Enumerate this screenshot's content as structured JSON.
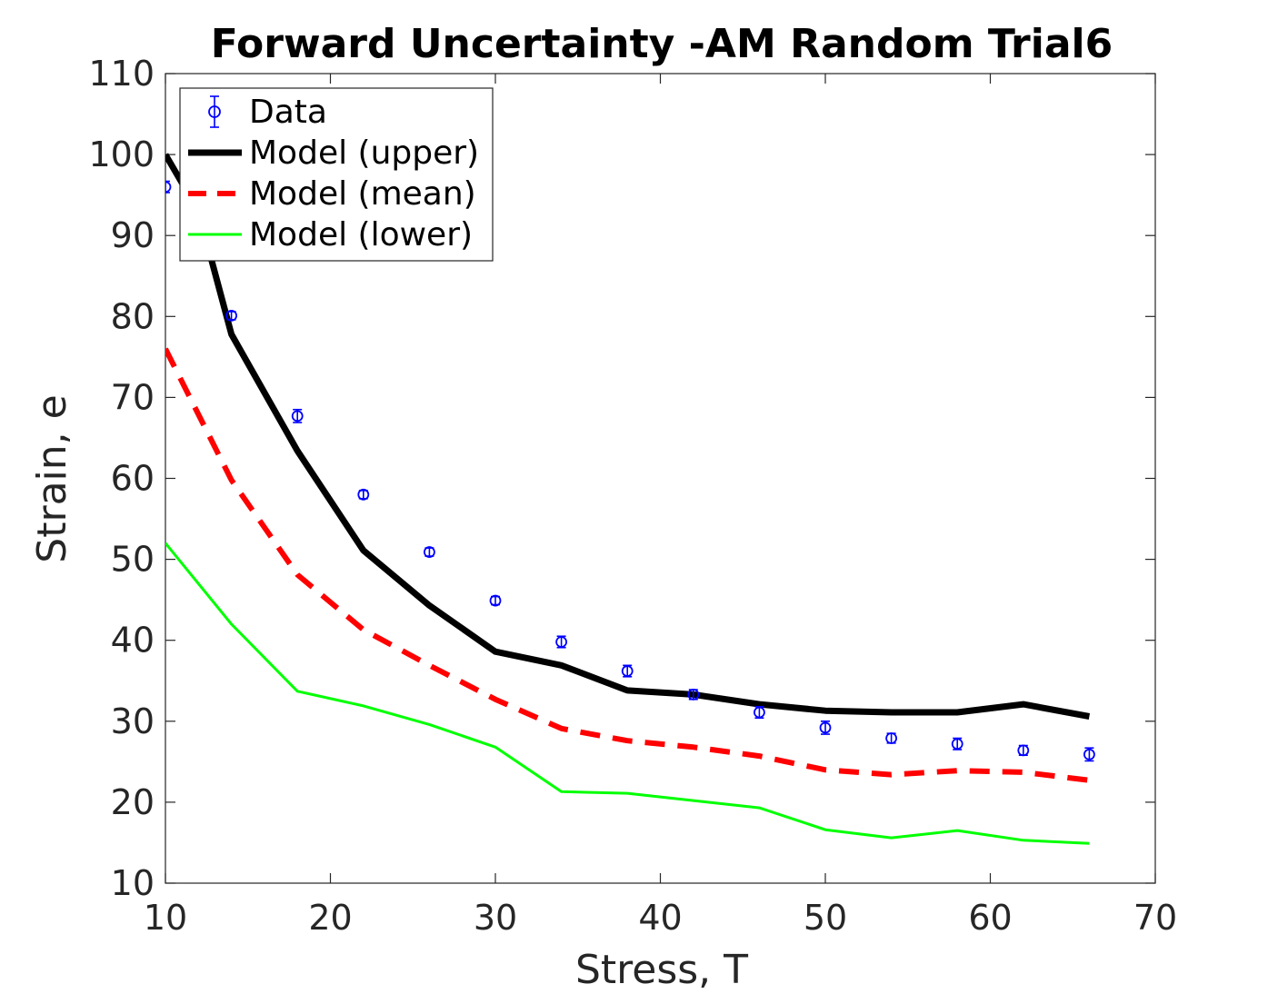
{
  "chart_data": {
    "type": "line",
    "title": "Forward Uncertainty -AM Random Trial6",
    "xlabel": "Stress, T",
    "ylabel": "Strain, e",
    "xlim": [
      10,
      70
    ],
    "ylim": [
      10,
      110
    ],
    "xticks": [
      10,
      20,
      30,
      40,
      50,
      60,
      70
    ],
    "yticks": [
      10,
      20,
      30,
      40,
      50,
      60,
      70,
      80,
      90,
      100,
      110
    ],
    "grid": false,
    "legend_position": "top-left",
    "x": [
      10,
      14,
      18,
      22,
      26,
      30,
      34,
      38,
      42,
      46,
      50,
      54,
      58,
      62,
      66
    ],
    "series": [
      {
        "name": "Data",
        "style": "errorbar-circle",
        "color": "#0000ff",
        "values": [
          96.0,
          80.1,
          67.7,
          58.0,
          50.9,
          44.9,
          39.8,
          36.2,
          33.3,
          31.1,
          29.2,
          27.9,
          27.2,
          26.4,
          25.9
        ],
        "errors": [
          0.7,
          0.5,
          0.8,
          0.5,
          0.5,
          0.5,
          0.7,
          0.7,
          0.6,
          0.7,
          0.8,
          0.6,
          0.7,
          0.6,
          0.8
        ]
      },
      {
        "name": "Model (upper)",
        "style": "solid-thick",
        "color": "#000000",
        "x": [
          10,
          12,
          14,
          18,
          22,
          26,
          30,
          34,
          38,
          42,
          46,
          50,
          54,
          58,
          62,
          66
        ],
        "values": [
          100.0,
          93.0,
          77.8,
          63.4,
          51.1,
          44.3,
          38.6,
          36.9,
          33.8,
          33.3,
          32.1,
          31.3,
          31.1,
          31.1,
          32.1,
          30.6
        ]
      },
      {
        "name": "Model (mean)",
        "style": "dashed",
        "color": "#ff0000",
        "values": [
          76.0,
          59.8,
          48.1,
          41.3,
          36.9,
          32.7,
          29.1,
          27.6,
          26.8,
          25.7,
          24.0,
          23.4,
          23.9,
          23.7,
          22.7
        ]
      },
      {
        "name": "Model (lower)",
        "style": "solid-thin",
        "color": "#00ff00",
        "values": [
          52.0,
          42.0,
          33.7,
          31.9,
          29.6,
          26.8,
          21.3,
          21.1,
          20.2,
          19.3,
          16.6,
          15.6,
          16.5,
          15.3,
          14.9
        ]
      }
    ]
  }
}
